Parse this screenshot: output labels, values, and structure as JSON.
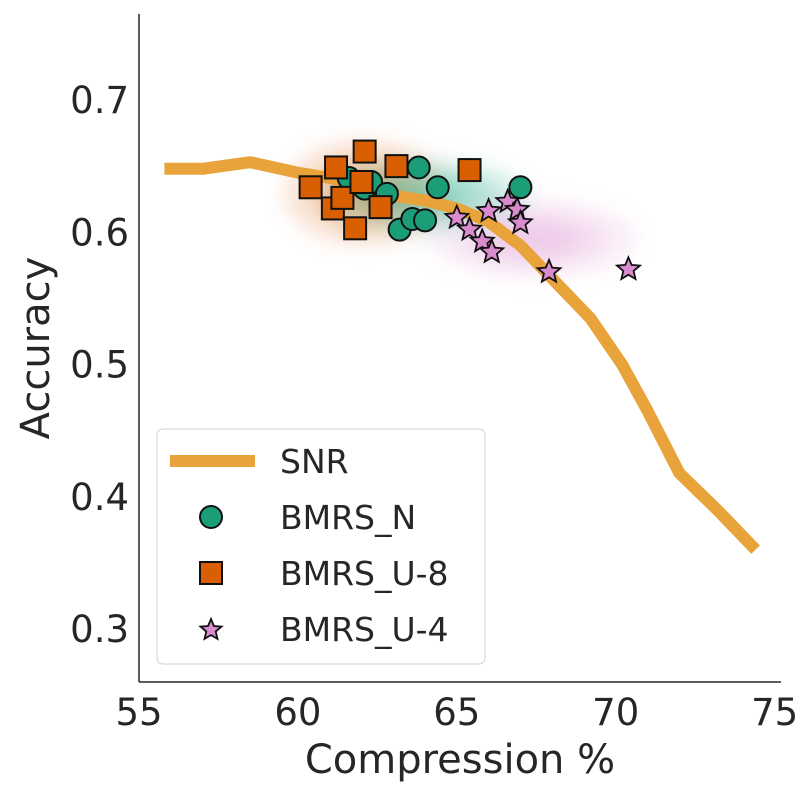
{
  "chart_data": {
    "type": "scatter",
    "title": "",
    "xlabel": "Compression %",
    "ylabel": "Accuracy",
    "xlim": [
      55,
      75.2
    ],
    "ylim": [
      0.26,
      0.765
    ],
    "xticks": [
      55,
      60,
      65,
      70,
      75
    ],
    "yticks": [
      0.3,
      0.4,
      0.5,
      0.6,
      0.7
    ],
    "xtick_labels": [
      "55",
      "60",
      "65",
      "70",
      "75"
    ],
    "ytick_labels": [
      "0.3",
      "0.4",
      "0.5",
      "0.6",
      "0.7"
    ],
    "grid": false,
    "legend_position": "lower-left",
    "colors": {
      "snr": "#e8a33a",
      "bmrs_n": "#1b9e77",
      "bmrs_u8": "#d95f02",
      "bmrs_u4": "#d98bcf"
    },
    "series": [
      {
        "name": "SNR",
        "kind": "line",
        "x": [
          55.8,
          57.0,
          58.5,
          60.0,
          61.0,
          62.0,
          62.7,
          63.2,
          64.0,
          65.0,
          66.0,
          67.0,
          68.0,
          69.2,
          70.2,
          71.0,
          72.0,
          73.2,
          74.4
        ],
        "y": [
          0.648,
          0.648,
          0.653,
          0.645,
          0.641,
          0.636,
          0.63,
          0.627,
          0.624,
          0.618,
          0.608,
          0.59,
          0.565,
          0.535,
          0.5,
          0.465,
          0.418,
          0.39,
          0.36
        ]
      },
      {
        "name": "BMRS_N",
        "kind": "scatter",
        "marker": "circle",
        "x": [
          61.6,
          62.1,
          62.3,
          62.8,
          63.2,
          63.6,
          63.8,
          64.0,
          64.4,
          67.0
        ],
        "y": [
          0.641,
          0.633,
          0.638,
          0.629,
          0.602,
          0.61,
          0.649,
          0.609,
          0.634,
          0.634
        ]
      },
      {
        "name": "BMRS_U-8",
        "kind": "scatter",
        "marker": "square",
        "x": [
          60.4,
          61.1,
          61.2,
          61.4,
          61.8,
          62.0,
          62.1,
          62.6,
          63.1,
          65.4
        ],
        "y": [
          0.634,
          0.618,
          0.649,
          0.626,
          0.603,
          0.638,
          0.661,
          0.619,
          0.65,
          0.647
        ]
      },
      {
        "name": "BMRS_U-4",
        "kind": "scatter",
        "marker": "star",
        "x": [
          65.0,
          65.4,
          65.8,
          66.0,
          66.1,
          66.6,
          66.9,
          67.0,
          67.9,
          70.4
        ],
        "y": [
          0.611,
          0.602,
          0.593,
          0.616,
          0.585,
          0.623,
          0.617,
          0.607,
          0.57,
          0.572
        ]
      }
    ],
    "density_regions": [
      {
        "series": "BMRS_U-8",
        "cx": 62.1,
        "cy": 0.63,
        "rx": 2.6,
        "ry": 0.041
      },
      {
        "series": "BMRS_N",
        "cx": 64.1,
        "cy": 0.627,
        "rx": 3.2,
        "ry": 0.028
      },
      {
        "series": "BMRS_U-4",
        "cx": 67.4,
        "cy": 0.595,
        "rx": 3.3,
        "ry": 0.03
      }
    ]
  }
}
